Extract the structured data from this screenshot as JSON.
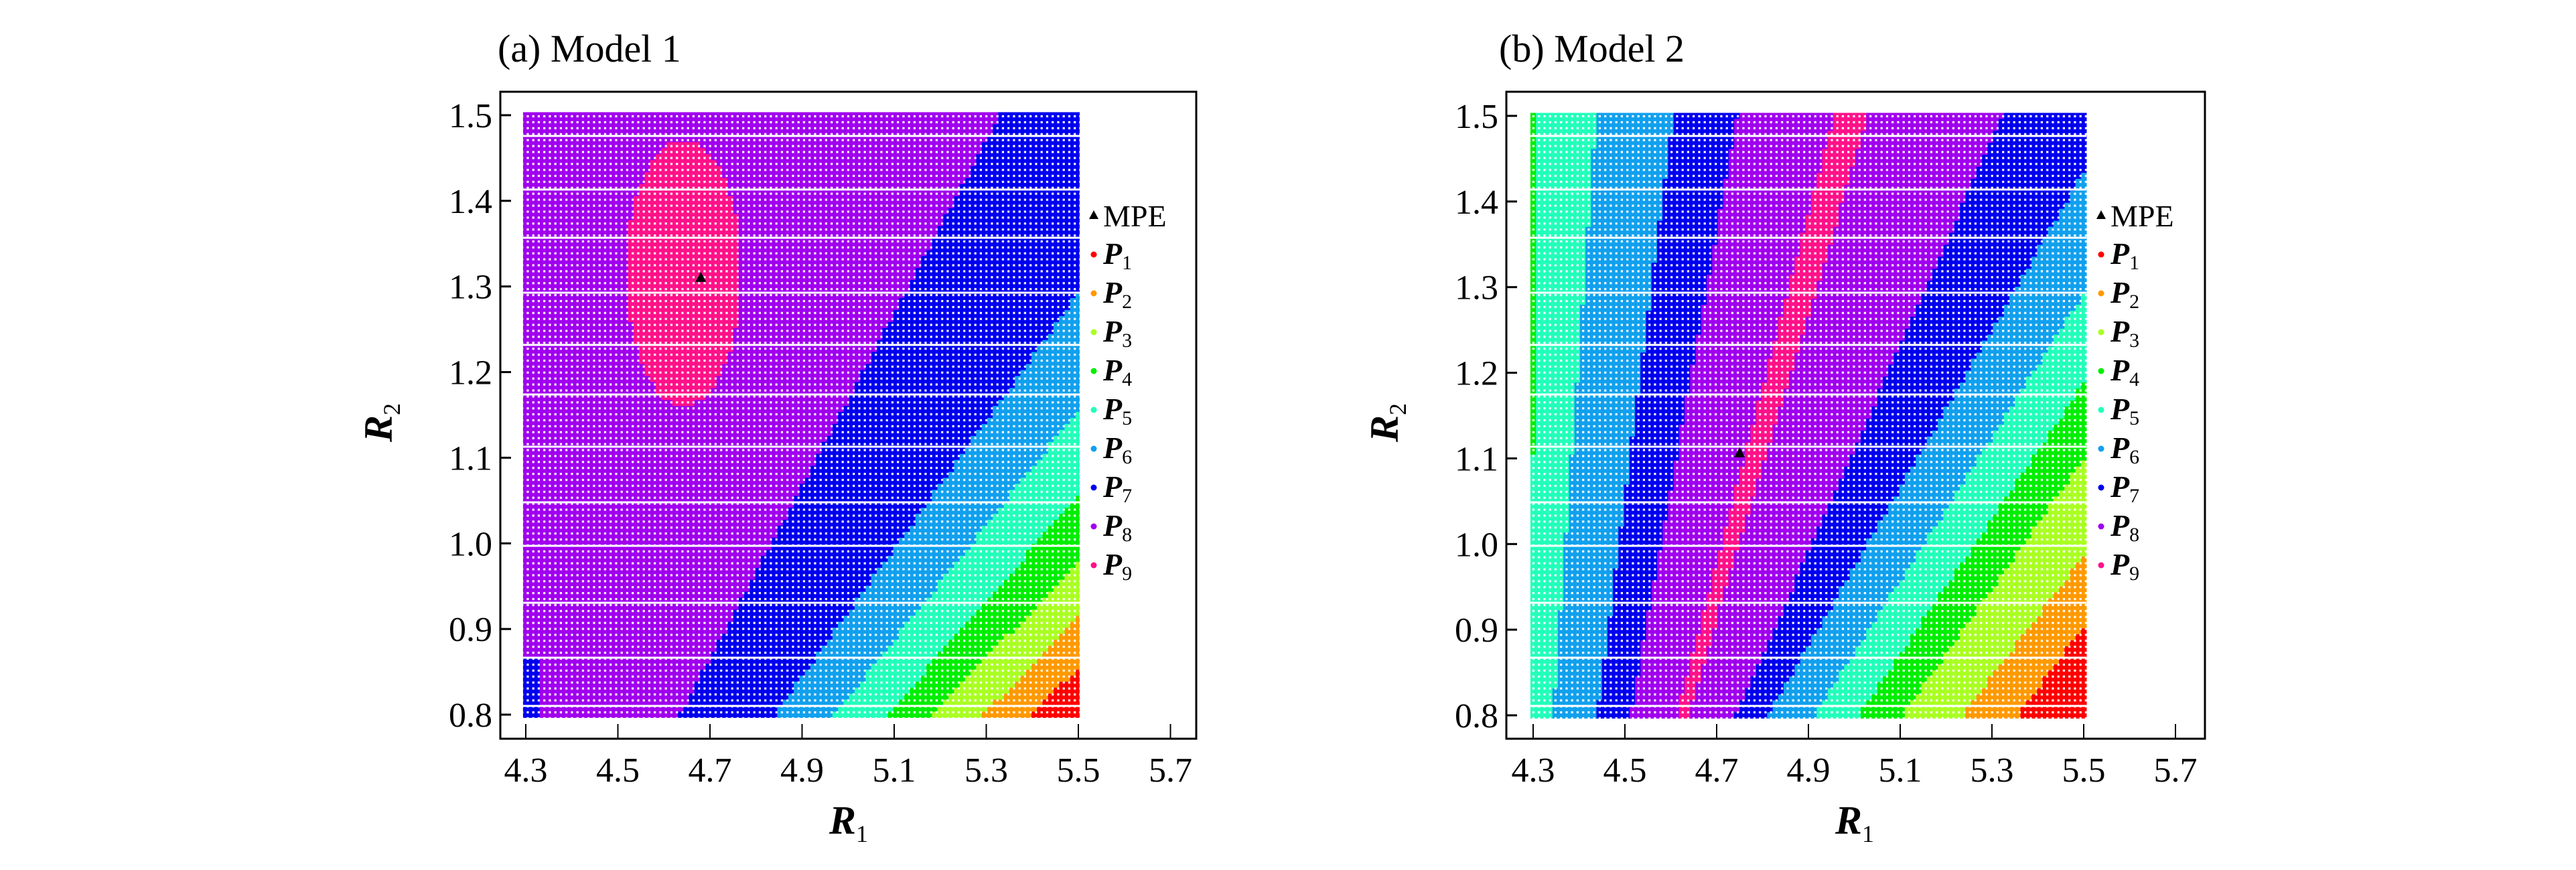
{
  "chart_data": [
    {
      "type": "scatter",
      "title": "(a) Model 1",
      "xlabel": "R",
      "xlabel_sub": "1",
      "ylabel": "R",
      "ylabel_sub": "2",
      "xlim": [
        4.25,
        5.8
      ],
      "ylim": [
        0.77,
        1.53
      ],
      "xticks": [
        "4.3",
        "4.5",
        "4.7",
        "4.9",
        "5.1",
        "5.3",
        "5.5",
        "5.7"
      ],
      "yticks": [
        "0.8",
        "0.9",
        "1.0",
        "1.1",
        "1.2",
        "1.3",
        "1.4",
        "1.5"
      ],
      "grid_domain": {
        "r1": [
          4.3,
          5.5
        ],
        "r2": [
          0.8,
          1.5
        ],
        "r1_points": 101,
        "r2_points": 101
      },
      "mpe": {
        "r1": 4.68,
        "r2": 1.31
      },
      "region_sequence": [
        8,
        7,
        6,
        5,
        4,
        3,
        2,
        1
      ],
      "region_boundaries": [
        {
          "between": [
            8,
            7
          ],
          "at_r2_0_8": 4.635,
          "at_r2_1_5": 5.33
        },
        {
          "between": [
            7,
            6
          ],
          "from": [
            4.84,
            0.8
          ],
          "to": [
            5.5,
            1.292
          ]
        },
        {
          "between": [
            6,
            5
          ],
          "from": [
            4.97,
            0.8
          ],
          "to": [
            5.5,
            1.156
          ]
        },
        {
          "between": [
            5,
            4
          ],
          "from": [
            5.085,
            0.8
          ],
          "to": [
            5.5,
            1.056
          ]
        },
        {
          "between": [
            4,
            3
          ],
          "from": [
            5.18,
            0.8
          ],
          "to": [
            5.5,
            0.978
          ]
        },
        {
          "between": [
            3,
            2
          ],
          "from": [
            5.295,
            0.8
          ],
          "to": [
            5.5,
            0.915
          ]
        },
        {
          "between": [
            2,
            1
          ],
          "from": [
            5.395,
            0.8
          ],
          "to": [
            5.5,
            0.854
          ]
        }
      ],
      "p9_island": {
        "center": [
          4.643,
          1.316
        ],
        "half_width_r1": 0.125,
        "half_height_r2": 0.155
      },
      "corner_p7": {
        "r1_max": 4.33,
        "r2_max": 0.87
      },
      "legend": "right"
    },
    {
      "type": "scatter",
      "title": "(b) Model 2",
      "xlabel": "R",
      "xlabel_sub": "1",
      "ylabel": "R",
      "ylabel_sub": "2",
      "xlim": [
        4.25,
        5.8
      ],
      "ylim": [
        0.77,
        1.53
      ],
      "xticks": [
        "4.3",
        "4.5",
        "4.7",
        "4.9",
        "5.1",
        "5.3",
        "5.5",
        "5.7"
      ],
      "yticks": [
        "0.8",
        "0.9",
        "1.0",
        "1.1",
        "1.2",
        "1.3",
        "1.4",
        "1.5"
      ],
      "grid_domain": {
        "r1": [
          4.3,
          5.5
        ],
        "r2": [
          0.8,
          1.5
        ],
        "r1_points": 101,
        "r2_points": 101
      },
      "mpe": {
        "r1": 4.75,
        "r2": 1.106
      },
      "region_sequence": [
        5,
        6,
        7,
        8,
        9,
        8,
        7,
        6,
        5,
        4,
        3,
        2,
        1
      ],
      "region_boundaries": [
        {
          "between": [
            5,
            6
          ],
          "from": [
            4.344,
            0.8
          ],
          "to": [
            4.437,
            1.5
          ]
        },
        {
          "between": [
            6,
            7
          ],
          "from": [
            4.44,
            0.8
          ],
          "to": [
            4.605,
            1.5
          ]
        },
        {
          "between": [
            7,
            8
          ],
          "from": [
            4.512,
            0.8
          ],
          "to": [
            4.745,
            1.5
          ]
        },
        {
          "between": [
            8,
            9
          ],
          "from": [
            4.612,
            0.8
          ],
          "to": [
            4.955,
            1.5
          ]
        },
        {
          "between": [
            9,
            8
          ],
          "from": [
            4.637,
            0.8
          ],
          "to": [
            5.031,
            1.5
          ]
        },
        {
          "between": [
            8,
            7
          ],
          "from": [
            4.742,
            0.8
          ],
          "to": [
            5.323,
            1.5
          ]
        },
        {
          "between": [
            7,
            6
          ],
          "from": [
            4.812,
            0.8
          ],
          "to": [
            5.5,
            1.435
          ]
        },
        {
          "between": [
            6,
            5
          ],
          "from": [
            4.913,
            0.8
          ],
          "to": [
            5.5,
            1.293
          ]
        },
        {
          "between": [
            5,
            4
          ],
          "from": [
            5.01,
            0.8
          ],
          "to": [
            5.5,
            1.188
          ]
        },
        {
          "between": [
            4,
            3
          ],
          "from": [
            5.106,
            0.8
          ],
          "to": [
            5.5,
            1.1
          ]
        },
        {
          "between": [
            3,
            2
          ],
          "from": [
            5.236,
            0.8
          ],
          "to": [
            5.5,
            0.986
          ]
        },
        {
          "between": [
            2,
            1
          ],
          "from": [
            5.357,
            0.8
          ],
          "to": [
            5.5,
            0.903
          ]
        }
      ],
      "left_edge_p4": {
        "r1_max": 4.305,
        "r2_min": 1.107
      },
      "legend": "right"
    }
  ],
  "legend": {
    "mpe_label": "MPE",
    "items": [
      {
        "symbol": "P",
        "sub": "1",
        "level": 1,
        "color": "#ff0000"
      },
      {
        "symbol": "P",
        "sub": "2",
        "level": 2,
        "color": "#ff9900"
      },
      {
        "symbol": "P",
        "sub": "3",
        "level": 3,
        "color": "#aaff22"
      },
      {
        "symbol": "P",
        "sub": "4",
        "level": 4,
        "color": "#00ee00"
      },
      {
        "symbol": "P",
        "sub": "5",
        "level": 5,
        "color": "#22ffbb"
      },
      {
        "symbol": "P",
        "sub": "6",
        "level": 6,
        "color": "#11a0ee"
      },
      {
        "symbol": "P",
        "sub": "7",
        "level": 7,
        "color": "#0000ee"
      },
      {
        "symbol": "P",
        "sub": "8",
        "level": 8,
        "color": "#a000ee"
      },
      {
        "symbol": "P",
        "sub": "9",
        "level": 9,
        "color": "#ff1188"
      }
    ]
  }
}
